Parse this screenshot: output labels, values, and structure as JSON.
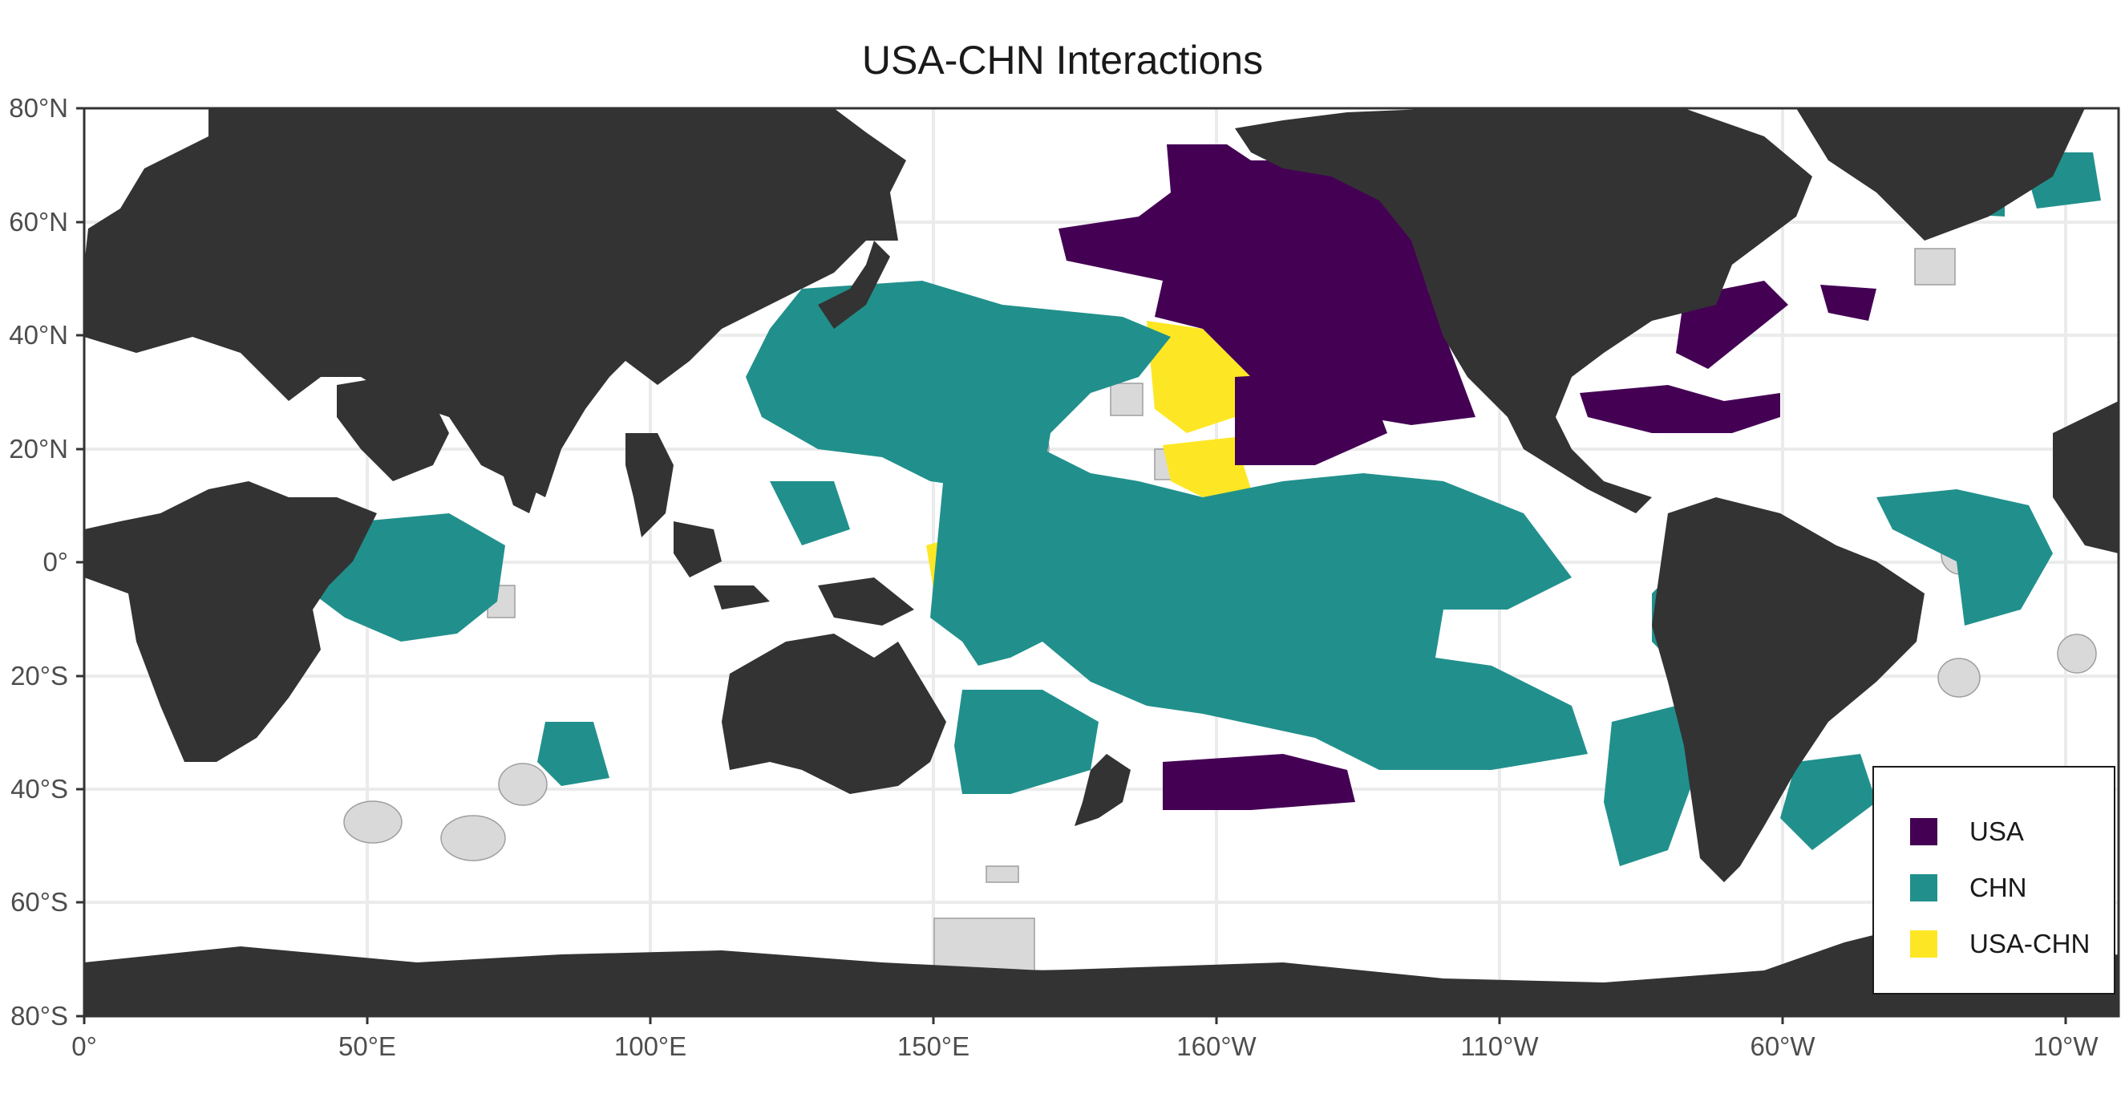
{
  "title": "USA-CHN Interactions",
  "legend": {
    "items": [
      {
        "label": "USA",
        "color": "#440154"
      },
      {
        "label": "CHN",
        "color": "#21908C"
      },
      {
        "label": "USA-CHN",
        "color": "#FDE725"
      }
    ]
  },
  "axes": {
    "y_ticks": [
      "80°N",
      "60°N",
      "40°N",
      "20°N",
      "0°",
      "20°S",
      "40°S",
      "60°S",
      "80°S"
    ],
    "x_ticks": [
      "0°",
      "50°E",
      "100°E",
      "150°E",
      "160°W",
      "110°W",
      "60°W",
      "10°W"
    ]
  },
  "colors": {
    "land": "#333333",
    "ocean": "#ffffff",
    "high_seas_boundary": "#bdbdbd",
    "excluded_area": "#d9d9d9",
    "grid": "#ebebeb"
  }
}
